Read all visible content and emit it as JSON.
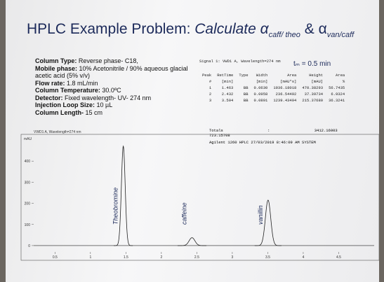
{
  "title": {
    "lead": "HPLC Example Problem:",
    "calc": "Calculate α",
    "sub1": "caff/ theo",
    "mid": "& α",
    "sub2": "van/caff"
  },
  "conditions": [
    {
      "label": "Column Type:",
      "text": "Reverse phase- C18,"
    },
    {
      "label": "Mobile phase:",
      "text": "10% Acetonitrile / 90% aqueous glacial acetic acid (5% v/v)"
    },
    {
      "label": "Flow rate:",
      "text": "1.8 mL/min"
    },
    {
      "label": "Column Temperature:",
      "text": "30.0ºC"
    },
    {
      "label": "Detector:",
      "text": "Fixed wavelength- UV- 274 nm"
    },
    {
      "label": "Injection Loop Size:",
      "text": "10 µL"
    },
    {
      "label": "Column Length-",
      "text": "15 cm"
    }
  ],
  "report": {
    "signal": "Signal 1: VWD1 A, Wavelength=274 nm",
    "note": "tₘ = 0.5 min",
    "header": [
      [
        "Peak",
        "RetTime",
        "Type",
        "Width",
        "Area",
        "Height",
        "Area"
      ],
      [
        "#",
        "[min]",
        "",
        "[min]",
        "[mAU*s]",
        "[mAU]",
        "%"
      ]
    ],
    "rows": [
      [
        "1",
        "1.463",
        "BB",
        "0.0630",
        "1936.18018",
        "470.38293",
        "56.7435"
      ],
      [
        "2",
        "2.432",
        "BB",
        "0.0958",
        "236.54492",
        "37.39734",
        "6.9324"
      ],
      [
        "3",
        "3.504",
        "BB",
        "0.0891",
        "1239.43494",
        "215.37680",
        "36.3241"
      ]
    ],
    "totals": [
      "Totals :",
      "3412.16003",
      "723.15708"
    ],
    "system": "Agilent 1260 HPLC 27/03/2019 8:46:09 AM SYSTEM"
  },
  "chart_data": {
    "type": "chromatogram",
    "title": "VWD1 A, Wavelength=274 nm",
    "ylabel": "mAU",
    "x": [
      1.463,
      2.432,
      3.504
    ],
    "values": [
      470.38293,
      37.39734,
      215.3768
    ],
    "widths": [
      0.063,
      0.0958,
      0.0891
    ],
    "peak_labels": [
      "Theobromine",
      "caffeine",
      "vanillin"
    ],
    "color": "#222",
    "xlim": [
      0.2,
      5.0
    ],
    "xticks": [
      0.5,
      1,
      1.5,
      2,
      2.5,
      3,
      3.5,
      4,
      4.5
    ],
    "ylim": [
      -30,
      500
    ],
    "yticks": [
      0,
      100,
      200,
      300,
      400
    ]
  }
}
